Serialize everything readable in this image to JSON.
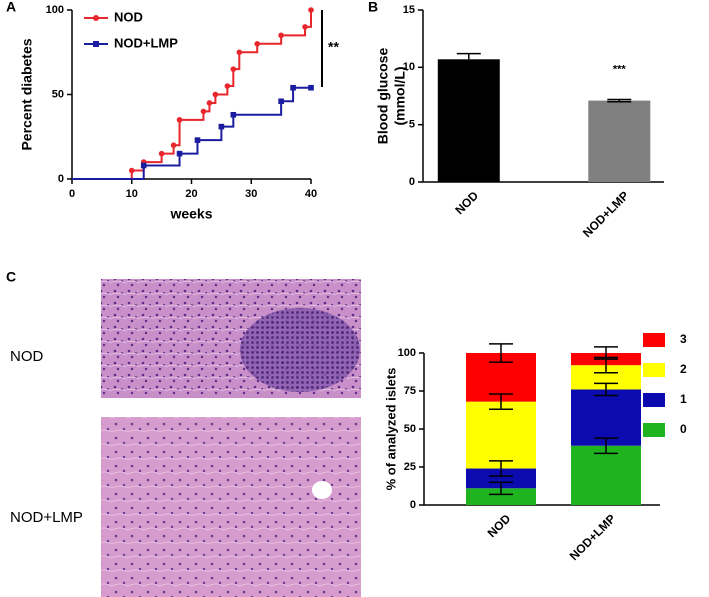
{
  "panels": [
    "A",
    "B",
    "C"
  ],
  "chart_data": [
    {
      "type": "step",
      "ylabel": "Percent diabetes",
      "xlabel": "weeks",
      "annotation": "**",
      "xlim": [
        0,
        40
      ],
      "xticks": [
        0,
        10,
        20,
        30,
        40
      ],
      "ylim": [
        0,
        100
      ],
      "yticks": [
        0,
        50,
        100
      ],
      "series": [
        {
          "name": "NOD",
          "color": "#e8262b",
          "x": [
            0,
            10,
            12,
            15,
            17,
            18,
            22,
            23,
            24,
            26,
            27,
            28,
            31,
            35,
            39,
            40
          ],
          "values": [
            0,
            5,
            10,
            15,
            20,
            35,
            40,
            45,
            50,
            55,
            65,
            75,
            80,
            85,
            90,
            100
          ]
        },
        {
          "name": "NOD+LMP",
          "color": "#1c1ca0",
          "x": [
            0,
            12,
            18,
            21,
            25,
            27,
            35,
            37,
            40
          ],
          "values": [
            0,
            8,
            15,
            23,
            31,
            38,
            46,
            54,
            54
          ]
        }
      ]
    },
    {
      "type": "bar",
      "ylabel_lines": [
        "Blood glucose",
        "(mmol/L)"
      ],
      "annotation": "***",
      "categories": [
        "NOD",
        "NOD+LMP"
      ],
      "values": [
        10.7,
        7.1
      ],
      "errors": [
        0.5,
        0.1
      ],
      "colors": [
        "#000000",
        "#808080"
      ],
      "ylim": [
        0,
        15
      ],
      "yticks": [
        0,
        5,
        10,
        15
      ]
    },
    {
      "type": "stacked_bar",
      "ylabel": "% of analyzed islets",
      "categories": [
        "NOD",
        "NOD+LMP"
      ],
      "ylim": [
        0,
        100
      ],
      "yticks": [
        0,
        25,
        50,
        75,
        100
      ],
      "series": [
        {
          "name": "0",
          "color": "#1fb31f",
          "values": [
            11,
            39
          ],
          "errors": [
            4,
            5
          ]
        },
        {
          "name": "1",
          "color": "#0b0bb0",
          "values": [
            13,
            37
          ],
          "errors": [
            5,
            4
          ]
        },
        {
          "name": "2",
          "color": "#ffff00",
          "values": [
            44,
            16
          ],
          "errors": [
            5,
            5
          ]
        },
        {
          "name": "3",
          "color": "#ff0000",
          "values": [
            32,
            8
          ],
          "errors": [
            6,
            4
          ]
        }
      ]
    }
  ],
  "images": [
    {
      "label": "NOD"
    },
    {
      "label": "NOD+LMP"
    }
  ]
}
